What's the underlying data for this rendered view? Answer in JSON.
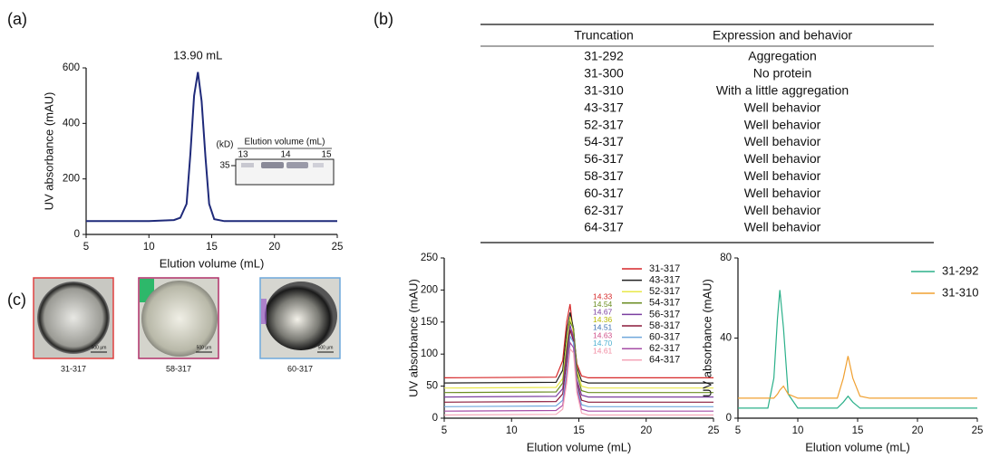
{
  "panel_labels": [
    "(a)",
    "(b)",
    "(c)"
  ],
  "chart_data": [
    {
      "type": "line",
      "annotation": "13.90 mL",
      "x_label": "Elution volume (mL)",
      "y_label": "UV absorbance (mAU)",
      "x": [
        5,
        10,
        12,
        12.5,
        13,
        13.3,
        13.6,
        13.9,
        14.2,
        14.5,
        14.8,
        15.2,
        16,
        20,
        25
      ],
      "series": [
        {
          "color": "#1f2a7a",
          "values": [
            48,
            48,
            52,
            60,
            110,
            290,
            500,
            585,
            480,
            280,
            110,
            55,
            48,
            48,
            48
          ]
        }
      ],
      "xlim": [
        5,
        25
      ],
      "xticks": [
        5,
        10,
        15,
        20,
        25
      ],
      "ylim": [
        0,
        600
      ],
      "yticks": [
        0,
        200,
        400,
        600
      ]
    },
    {
      "type": "line",
      "x_label": "Elution volume (mL)",
      "y_label": "UV absorbance (mAU)",
      "x": [
        5,
        13.3,
        13.8,
        14.1,
        14.35,
        14.6,
        14.85,
        15.2,
        15.7,
        25
      ],
      "series": [
        {
          "name": "31-317",
          "color": "#d62728",
          "values": [
            63,
            64,
            90,
            150,
            178,
            130,
            85,
            66,
            63,
            63
          ]
        },
        {
          "name": "43-317",
          "color": "#222222",
          "values": [
            55,
            56,
            75,
            135,
            165,
            140,
            80,
            58,
            55,
            55
          ]
        },
        {
          "name": "52-317",
          "color": "#e8e84a",
          "values": [
            47,
            48,
            62,
            120,
            158,
            135,
            75,
            50,
            47,
            47
          ]
        },
        {
          "name": "54-317",
          "color": "#6b8e23",
          "values": [
            40,
            41,
            55,
            110,
            150,
            140,
            70,
            43,
            40,
            40
          ]
        },
        {
          "name": "56-317",
          "color": "#7b3fa0",
          "values": [
            33,
            34,
            46,
            100,
            145,
            125,
            60,
            36,
            33,
            33
          ]
        },
        {
          "name": "58-317",
          "color": "#8b1a3a",
          "values": [
            25,
            26,
            38,
            90,
            138,
            120,
            55,
            28,
            25,
            25
          ]
        },
        {
          "name": "60-317",
          "color": "#6fa8dc",
          "values": [
            18,
            19,
            28,
            75,
            128,
            118,
            50,
            21,
            18,
            18
          ]
        },
        {
          "name": "62-317",
          "color": "#a64ca6",
          "values": [
            11,
            12,
            20,
            65,
            118,
            110,
            45,
            14,
            11,
            11
          ]
        },
        {
          "name": "64-317",
          "color": "#f4a6b8",
          "values": [
            5,
            6,
            14,
            55,
            108,
            102,
            40,
            8,
            5,
            5
          ]
        }
      ],
      "peak_labels": [
        {
          "text": "14.33",
          "color": "#d62728"
        },
        {
          "text": "14.54",
          "color": "#6b8e23"
        },
        {
          "text": "14.67",
          "color": "#7b3fa0"
        },
        {
          "text": "14.36",
          "color": "#b8b800"
        },
        {
          "text": "14.51",
          "color": "#3b6fb0"
        },
        {
          "text": "14.63",
          "color": "#d0508a"
        },
        {
          "text": "14.70",
          "color": "#4fb0d0"
        },
        {
          "text": "14.61",
          "color": "#f08aa0"
        }
      ],
      "xlim": [
        5,
        25
      ],
      "xticks": [
        5,
        10,
        15,
        20,
        25
      ],
      "ylim": [
        0,
        250
      ],
      "yticks": [
        0,
        50,
        100,
        150,
        200,
        250
      ]
    },
    {
      "type": "line",
      "x_label": "Elution volume (mL)",
      "y_label": "UV absorbance (mAU)",
      "x": [
        5,
        7.5,
        8,
        8.3,
        8.5,
        8.8,
        9.2,
        10,
        13.3,
        13.8,
        14.2,
        14.6,
        15.2,
        16,
        25
      ],
      "series": [
        {
          "name": "31-292",
          "color": "#2bb08a",
          "values": [
            5,
            5,
            20,
            50,
            64,
            45,
            12,
            5,
            5,
            8,
            11,
            8,
            5,
            5,
            5
          ]
        },
        {
          "name": "31-310",
          "color": "#f0a030",
          "values": [
            10,
            10,
            10,
            12,
            14,
            16,
            12,
            10,
            10,
            20,
            31,
            20,
            11,
            10,
            10
          ]
        }
      ],
      "xlim": [
        5,
        25
      ],
      "xticks": [
        5,
        10,
        15,
        20,
        25
      ],
      "ylim": [
        0,
        80
      ],
      "yticks": [
        0,
        40,
        80
      ]
    }
  ],
  "gel": {
    "title": "Elution volume (mL)",
    "unit": "(kD)",
    "lanes": [
      "13",
      "14",
      "15"
    ],
    "marker": "35"
  },
  "table": {
    "header": [
      "Truncation",
      "Expression and behavior"
    ],
    "rows": [
      [
        "31-292",
        "Aggregation"
      ],
      [
        "31-300",
        "No protein"
      ],
      [
        "31-310",
        "With a little aggregation"
      ],
      [
        "43-317",
        "Well behavior"
      ],
      [
        "52-317",
        "Well behavior"
      ],
      [
        "54-317",
        "Well behavior"
      ],
      [
        "56-317",
        "Well behavior"
      ],
      [
        "58-317",
        "Well behavior"
      ],
      [
        "60-317",
        "Well behavior"
      ],
      [
        "62-317",
        "Well behavior"
      ],
      [
        "64-317",
        "Well behavior"
      ]
    ]
  },
  "images": [
    {
      "caption": "31-317",
      "scale": "500 μm"
    },
    {
      "caption": "58-317",
      "scale": "500 μm"
    },
    {
      "caption": "60-317",
      "scale": "500 μm"
    }
  ]
}
